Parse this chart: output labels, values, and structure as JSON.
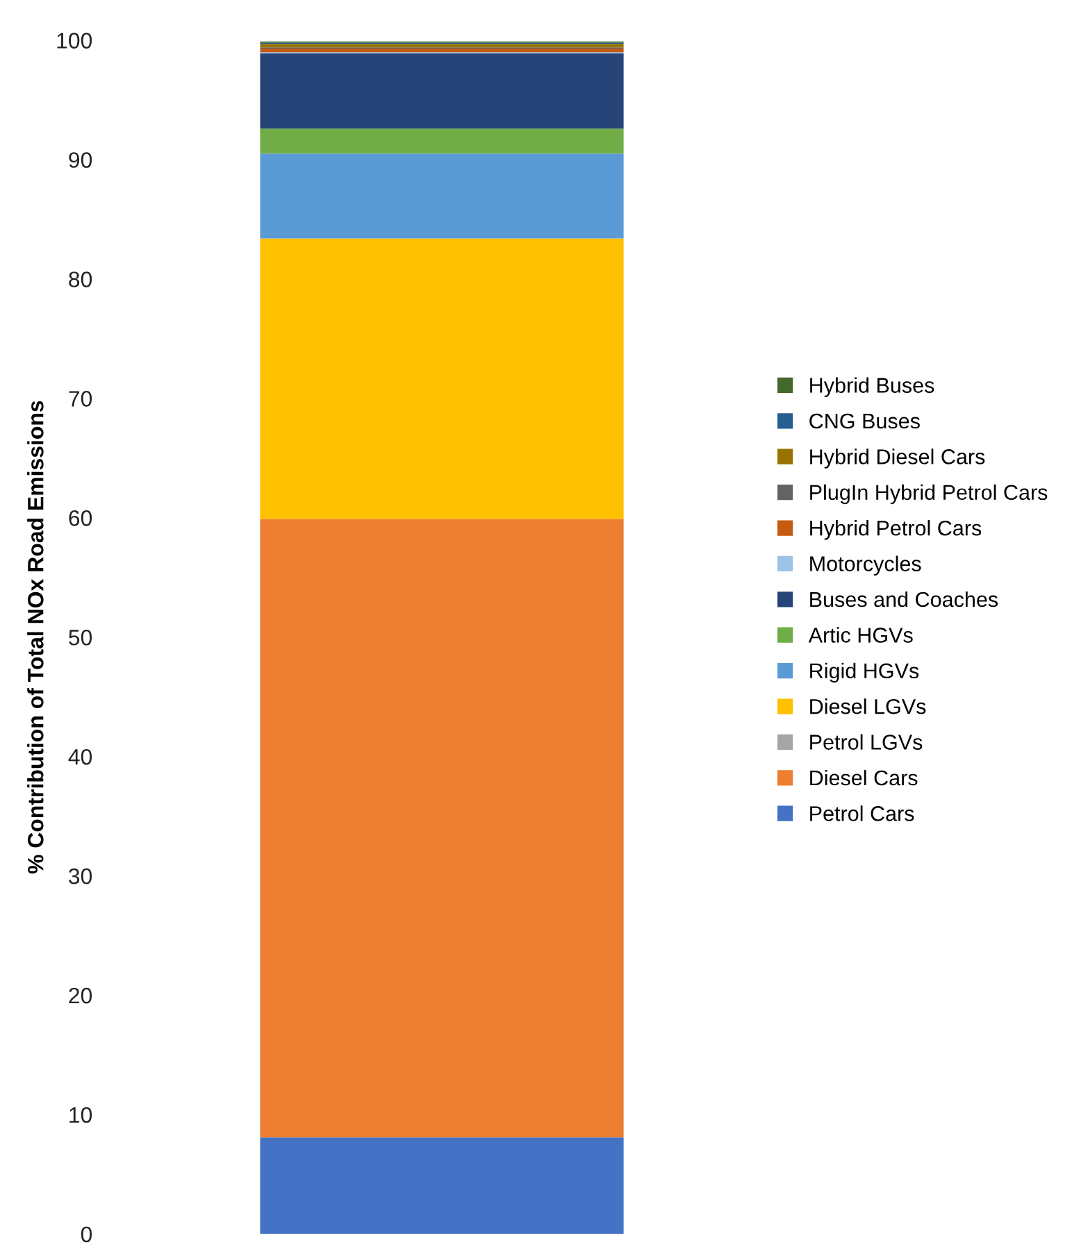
{
  "chart_data": {
    "type": "bar",
    "stacked": true,
    "ylabel": "% Contribution of Total NOx Road Emissions",
    "categories": [
      null
    ],
    "series": [
      {
        "name": "Petrol Cars",
        "color": "#4472c4",
        "values": [
          8.1
        ]
      },
      {
        "name": "Diesel Cars",
        "color": "#ed7d31",
        "values": [
          51.8
        ]
      },
      {
        "name": "Petrol LGVs",
        "color": "#a5a5a5",
        "values": [
          null
        ]
      },
      {
        "name": "Diesel LGVs",
        "color": "#ffc000",
        "values": [
          23.5
        ]
      },
      {
        "name": "Rigid HGVs",
        "color": "#5b9bd5",
        "values": [
          7.1
        ]
      },
      {
        "name": "Artic HGVs",
        "color": "#70ad47",
        "values": [
          2.1
        ]
      },
      {
        "name": "Buses and Coaches",
        "color": "#264478",
        "values": [
          6.3
        ]
      },
      {
        "name": "Motorcycles",
        "color": "#9dc3e6",
        "values": [
          0.1
        ]
      },
      {
        "name": "Hybrid Petrol Cars",
        "color": "#c55a11",
        "values": [
          0.3
        ]
      },
      {
        "name": "PlugIn Hybrid Petrol Cars",
        "color": "#636363",
        "values": [
          0.1
        ]
      },
      {
        "name": "Hybrid Diesel Cars",
        "color": "#997300",
        "values": [
          0.3
        ]
      },
      {
        "name": "CNG Buses",
        "color": "#255e91",
        "values": [
          0.1
        ]
      },
      {
        "name": "Hybrid Buses",
        "color": "#43682b",
        "values": [
          0.1
        ]
      }
    ],
    "ylim": [
      0,
      100
    ],
    "yticks": [
      0,
      10,
      20,
      30,
      40,
      50,
      60,
      70,
      80,
      90,
      100
    ],
    "grid": false,
    "legend": "right"
  }
}
